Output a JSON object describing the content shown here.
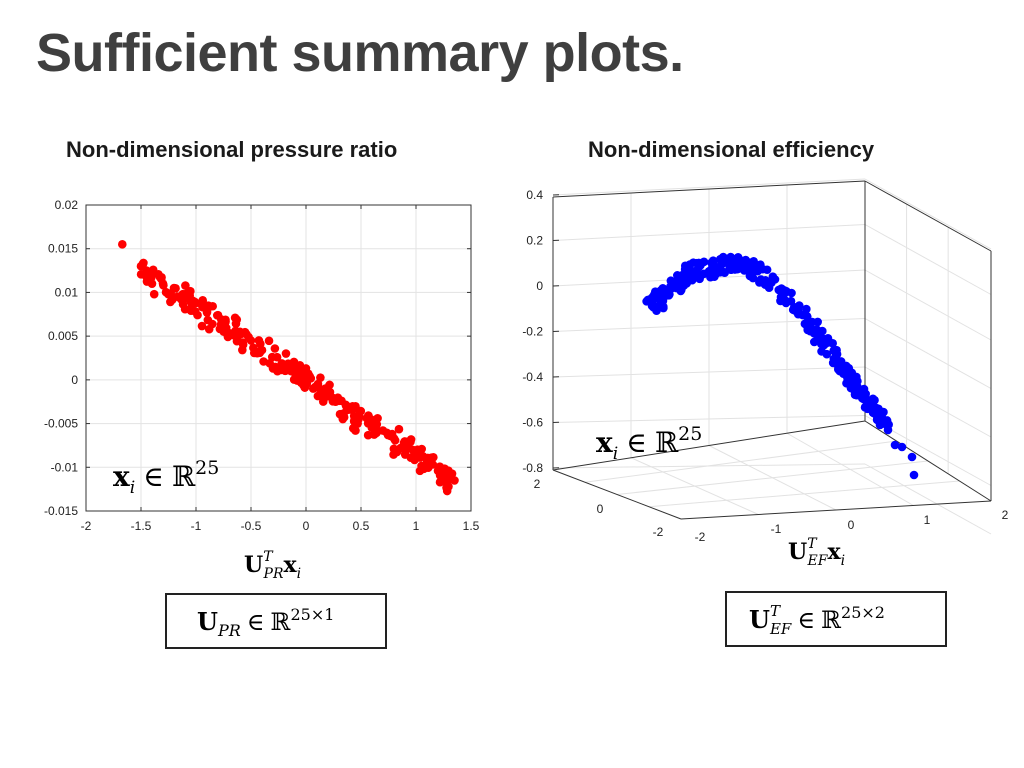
{
  "slide_title": "Sufficient summary plots.",
  "chart_data": [
    {
      "type": "scatter",
      "title": "Non-dimensional pressure ratio",
      "xlabel": {
        "base": "U",
        "sup": "T",
        "sub": "PR",
        "tail": "x",
        "tail_sub": "i"
      },
      "ylabel": "",
      "xlim": [
        -2,
        1.5
      ],
      "ylim": [
        -0.015,
        0.02
      ],
      "xticks": [
        "-2",
        "-1.5",
        "-1",
        "-0.5",
        "0",
        "0.5",
        "1",
        "1.5"
      ],
      "yticks": [
        "0.02",
        "0.015",
        "0.01",
        "0.005",
        "0",
        "-0.005",
        "-0.01",
        "-0.015"
      ],
      "grid": true,
      "color": "#ff0000",
      "trend": {
        "slope": -0.00858,
        "intercept": 0.0,
        "x_range": [
          -1.5,
          1.35
        ],
        "scatter": 0.0009
      },
      "points": [
        [
          -1.67,
          0.0155
        ],
        [
          -1.5,
          0.013
        ],
        [
          -1.45,
          0.0125
        ],
        [
          -1.4,
          0.011
        ],
        [
          -1.38,
          0.0098
        ],
        [
          -1.3,
          0.011
        ],
        [
          -1.2,
          0.0105
        ],
        [
          -1.12,
          0.0098
        ],
        [
          -1.0,
          0.0088
        ],
        [
          -0.9,
          0.0077
        ],
        [
          -0.88,
          0.0058
        ],
        [
          -0.8,
          0.0074
        ],
        [
          -0.72,
          0.0053
        ],
        [
          -0.6,
          0.0055
        ],
        [
          -0.5,
          0.0045
        ],
        [
          -0.4,
          0.0034
        ],
        [
          -0.3,
          0.0013
        ],
        [
          -0.2,
          0.0016
        ],
        [
          -0.1,
          0.0008
        ],
        [
          0.0,
          -0.0002
        ],
        [
          0.1,
          -0.0008
        ],
        [
          0.2,
          -0.0017
        ],
        [
          0.3,
          -0.0024
        ],
        [
          0.4,
          -0.0034
        ],
        [
          0.45,
          -0.0058
        ],
        [
          0.6,
          -0.0048
        ],
        [
          0.7,
          -0.0058
        ],
        [
          0.8,
          -0.0067
        ],
        [
          0.9,
          -0.0076
        ],
        [
          1.0,
          -0.0088
        ],
        [
          1.1,
          -0.0094
        ],
        [
          1.2,
          -0.0104
        ],
        [
          1.3,
          -0.011
        ],
        [
          1.35,
          -0.0115
        ]
      ],
      "annotation": {
        "base": "x",
        "sub": "i",
        "set": "ℝ",
        "dim": "25"
      },
      "caption": {
        "base": "U",
        "sub": "PR",
        "set": "ℝ",
        "dim": "25×1"
      }
    },
    {
      "type": "scatter",
      "title": "Non-dimensional efficiency",
      "xlabel": {
        "base": "U",
        "sup": "T",
        "sub": "EF",
        "tail": "x",
        "tail_sub": "i"
      },
      "zlim": [
        -0.8,
        0.4
      ],
      "zticks": [
        "0.4",
        "0.2",
        "0",
        "-0.2",
        "-0.4",
        "-0.6",
        "-0.8"
      ],
      "xticks": [
        "-2",
        "-1",
        "0",
        "1",
        "2"
      ],
      "yticks": [
        "2",
        "0",
        "-2"
      ],
      "grid": true,
      "color": "#0000ff",
      "annotation": {
        "base": "x",
        "sub": "i",
        "set": "ℝ",
        "dim": "25"
      },
      "caption": {
        "base": "U",
        "sup": "T",
        "sub": "EF",
        "set": "ℝ",
        "dim": "25×2"
      }
    }
  ]
}
